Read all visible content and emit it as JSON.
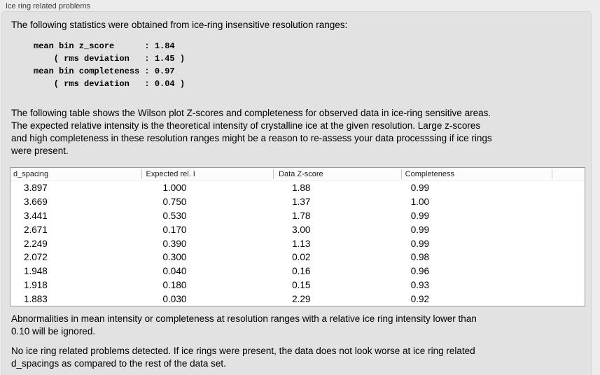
{
  "panel": {
    "title": "Ice ring related problems"
  },
  "intro_text": "The following statistics were obtained from ice-ring insensitive resolution ranges:",
  "stats_block": {
    "lines": [
      "mean bin z_score      : 1.84",
      "    ( rms deviation   : 1.45 )",
      "mean bin completeness : 0.97",
      "    ( rms deviation   : 0.04 )"
    ],
    "mean_bin_z_score": "1.84",
    "z_score_rms_deviation": "1.45",
    "mean_bin_completeness": "0.97",
    "completeness_rms_deviation": "0.04"
  },
  "description": {
    "lines": [
      "The following table shows the Wilson plot Z-scores and completeness for observed data in ice-ring sensitive areas.",
      "The expected relative intensity is the theoretical intensity of crystalline ice at the given resolution. Large z-scores",
      "and high completeness in these resolution ranges might be a reason to re-assess your data processsing if ice rings",
      "were present."
    ]
  },
  "table": {
    "columns": [
      "d_spacing",
      "Expected rel. I",
      "Data Z-score",
      "Completeness",
      ""
    ],
    "rows": [
      [
        "3.897",
        "1.000",
        "1.88",
        "0.99"
      ],
      [
        "3.669",
        "0.750",
        "1.37",
        "1.00"
      ],
      [
        "3.441",
        "0.530",
        "1.78",
        "0.99"
      ],
      [
        "2.671",
        "0.170",
        "3.00",
        "0.99"
      ],
      [
        "2.249",
        "0.390",
        "1.13",
        "0.99"
      ],
      [
        "2.072",
        "0.300",
        "0.02",
        "0.98"
      ],
      [
        "1.948",
        "0.040",
        "0.16",
        "0.96"
      ],
      [
        "1.918",
        "0.180",
        "0.15",
        "0.93"
      ],
      [
        "1.883",
        "0.030",
        "2.29",
        "0.92"
      ]
    ]
  },
  "footnote": {
    "lines": [
      "Abnormalities in mean intensity or completeness at resolution ranges with a relative ice ring intensity lower than",
      "0.10 will be ignored."
    ]
  },
  "conclusion": {
    "lines": [
      "No ice ring related problems detected. If ice rings were present, the data does not look worse at ice ring related",
      "d_spacings as compared to the rest of the data set."
    ]
  },
  "colors": {
    "page_background": "#ececec",
    "groupbox_background": "#e2e2e2",
    "groupbox_border": "#d2d2d2",
    "table_background": "#ffffff",
    "table_border": "#999999",
    "text": "#000000",
    "title_text": "#3c3c3c"
  }
}
